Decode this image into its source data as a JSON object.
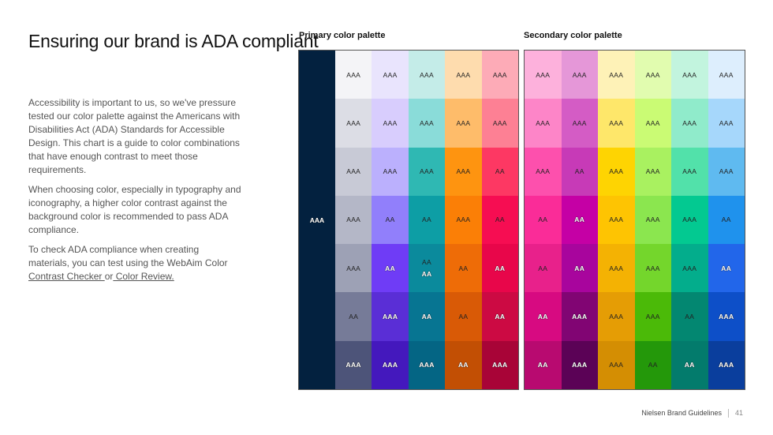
{
  "title": "Ensuring our brand is ADA compliant",
  "paragraphs": [
    "Accessibility is important to us, so we've pressure tested our color palette against the Americans with Disabilities Act (ADA) Standards for Accessible Design. This chart is a guide to color combinations that have enough contrast to meet those requirements.",
    "When choosing color, especially in typography and iconography, a higher color contrast against the background color is recommended to pass ADA compliance."
  ],
  "check_text": "To check ADA compliance when creating materials, you can test using the WebAim Color ",
  "link_contrast": "Contrast Checker ",
  "link_or": "or",
  "link_review": " Color Review.",
  "primary": {
    "title": "Primary color palette",
    "base": {
      "bg": "#03213f",
      "label": "AAA",
      "text": "w"
    },
    "columns": [
      [
        [
          "#f4f4f7",
          "AAA",
          "d"
        ],
        [
          "#dcdde5",
          "AAA",
          "d"
        ],
        [
          "#c8cad6",
          "AAA",
          "d"
        ],
        [
          "#b4b7c7",
          "AAA",
          "d"
        ],
        [
          "#9da1b5",
          "AAA",
          "d"
        ],
        [
          "#767b98",
          "AA",
          "d"
        ],
        [
          "#4d5479",
          "AAA",
          "w"
        ]
      ],
      [
        [
          "#e9e4fd",
          "AAA",
          "d"
        ],
        [
          "#d8cdfd",
          "AAA",
          "d"
        ],
        [
          "#bbb0fd",
          "AAA",
          "d"
        ],
        [
          "#917ffb",
          "AA",
          "d"
        ],
        [
          "#6f3cf6",
          "AA",
          "w"
        ],
        [
          "#5a2ed6",
          "AAA",
          "w"
        ],
        [
          "#4418bd",
          "AAA",
          "w"
        ]
      ],
      [
        [
          "#c4ece8",
          "AAA",
          "d"
        ],
        [
          "#8adcd9",
          "AAA",
          "d"
        ],
        [
          "#2fb8b3",
          "AAA",
          "d"
        ],
        [
          "#0d9ea5",
          "AA",
          "d"
        ],
        [
          "#0b8a9c",
          "AA",
          "d",
          "AA",
          "w"
        ],
        [
          "#077592",
          "AA",
          "w"
        ],
        [
          "#046584",
          "AAA",
          "w"
        ]
      ],
      [
        [
          "#fedcae",
          "AAA",
          "d"
        ],
        [
          "#febc6a",
          "AAA",
          "d"
        ],
        [
          "#fe9410",
          "AAA",
          "d"
        ],
        [
          "#fb7f06",
          "AAA",
          "d"
        ],
        [
          "#ee6c07",
          "AA",
          "d"
        ],
        [
          "#d95a06",
          "AA",
          "d"
        ],
        [
          "#c24f04",
          "AA",
          "w"
        ]
      ],
      [
        [
          "#fdabb7",
          "AAA",
          "d"
        ],
        [
          "#fd8094",
          "AAA",
          "d"
        ],
        [
          "#fd3863",
          "AA",
          "d"
        ],
        [
          "#f60d52",
          "AA",
          "d"
        ],
        [
          "#e8064a",
          "AA",
          "w"
        ],
        [
          "#cc0a43",
          "AA",
          "w"
        ],
        [
          "#a80437",
          "AAA",
          "w"
        ]
      ]
    ]
  },
  "secondary": {
    "title": "Secondary color palette",
    "columns": [
      [
        [
          "#fdb1dc",
          "AAA",
          "d"
        ],
        [
          "#fd85c8",
          "AAA",
          "d"
        ],
        [
          "#fd50ad",
          "AAA",
          "d"
        ],
        [
          "#fa2c98",
          "AA",
          "d"
        ],
        [
          "#e8218b",
          "AA",
          "d"
        ],
        [
          "#d70a81",
          "AA",
          "w"
        ],
        [
          "#b80a70",
          "AA",
          "w"
        ]
      ],
      [
        [
          "#e597d8",
          "AAA",
          "d"
        ],
        [
          "#d45cc5",
          "AAA",
          "d"
        ],
        [
          "#c73ab7",
          "AA",
          "d"
        ],
        [
          "#c500a5",
          "AA",
          "w"
        ],
        [
          "#a8059d",
          "AA",
          "w"
        ],
        [
          "#810573",
          "AAA",
          "w"
        ],
        [
          "#5b0256",
          "AAA",
          "w"
        ]
      ],
      [
        [
          "#fef2b7",
          "AAA",
          "d"
        ],
        [
          "#fee76a",
          "AAA",
          "d"
        ],
        [
          "#fed402",
          "AAA",
          "d"
        ],
        [
          "#fec402",
          "AAA",
          "d"
        ],
        [
          "#f4b203",
          "AAA",
          "d"
        ],
        [
          "#e59d05",
          "AAA",
          "d"
        ],
        [
          "#d48e03",
          "AAA",
          "d"
        ]
      ],
      [
        [
          "#e1fcaf",
          "AAA",
          "d"
        ],
        [
          "#cafb74",
          "AAA",
          "d"
        ],
        [
          "#a9f160",
          "AAA",
          "d"
        ],
        [
          "#8be64f",
          "AAA",
          "d"
        ],
        [
          "#74d62c",
          "AAA",
          "d"
        ],
        [
          "#4bba08",
          "AAA",
          "d"
        ],
        [
          "#24980a",
          "AA",
          "d"
        ]
      ],
      [
        [
          "#c2f4de",
          "AAA",
          "d"
        ],
        [
          "#90ebcb",
          "AAA",
          "d"
        ],
        [
          "#52e1aa",
          "AAA",
          "d"
        ],
        [
          "#03c991",
          "AAA",
          "d"
        ],
        [
          "#03ad8c",
          "AAA",
          "d"
        ],
        [
          "#038771",
          "AA",
          "d"
        ],
        [
          "#037b6c",
          "AA",
          "w"
        ]
      ],
      [
        [
          "#ddeefd",
          "AAA",
          "d"
        ],
        [
          "#a6d7fb",
          "AAA",
          "d"
        ],
        [
          "#5fbaf0",
          "AAA",
          "d"
        ],
        [
          "#1f92ed",
          "AA",
          "d"
        ],
        [
          "#2266ea",
          "AA",
          "w"
        ],
        [
          "#0d4fc8",
          "AAA",
          "w"
        ],
        [
          "#0a3e9d",
          "AAA",
          "w"
        ]
      ]
    ]
  },
  "footer": {
    "brand": "Nielsen Brand Guidelines",
    "page": "41"
  }
}
